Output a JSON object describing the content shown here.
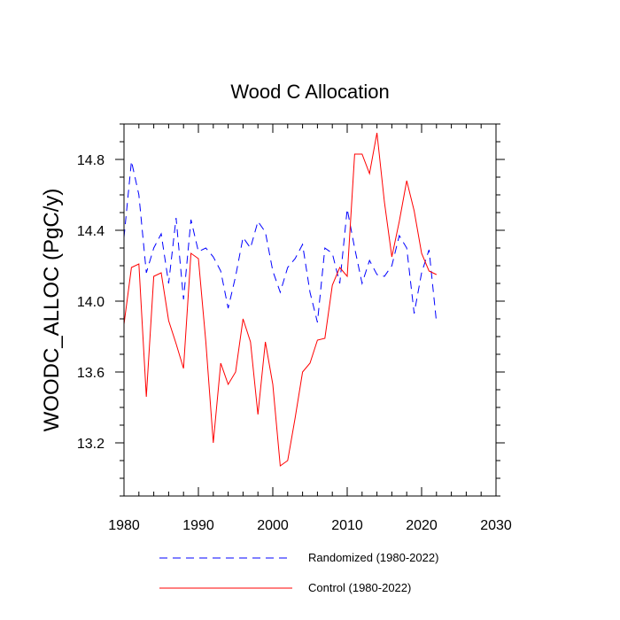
{
  "chart_data": {
    "type": "line",
    "title": "Wood C Allocation",
    "xlabel": "",
    "ylabel": "WOODC_ALLOC  (PgC/y)",
    "xlim": [
      1980,
      2030
    ],
    "ylim": [
      12.9,
      15.0
    ],
    "x_ticks": [
      1980,
      1990,
      2000,
      2010,
      2020,
      2030
    ],
    "x_tick_labels": [
      "1980",
      "1990",
      "2000",
      "2010",
      "2020",
      "2030"
    ],
    "y_ticks": [
      13.2,
      13.6,
      14.0,
      14.4,
      14.8
    ],
    "y_tick_labels": [
      "13.2",
      "13.6",
      "14.0",
      "14.4",
      "14.8"
    ],
    "grid": false,
    "legend_position": "bottom",
    "series": [
      {
        "name": "Randomized (1980-2022)",
        "color": "#0000ff",
        "style": "dashed",
        "x": [
          1980,
          1981,
          1982,
          1983,
          1984,
          1985,
          1986,
          1987,
          1988,
          1989,
          1990,
          1991,
          1992,
          1993,
          1994,
          1995,
          1996,
          1997,
          1998,
          1999,
          2000,
          2001,
          2002,
          2003,
          2004,
          2005,
          2006,
          2007,
          2008,
          2009,
          2010,
          2011,
          2012,
          2013,
          2014,
          2015,
          2016,
          2017,
          2018,
          2019,
          2020,
          2021,
          2022
        ],
        "values": [
          14.36,
          14.79,
          14.6,
          14.16,
          14.3,
          14.38,
          14.1,
          14.47,
          14.01,
          14.46,
          14.28,
          14.3,
          14.25,
          14.17,
          13.96,
          14.14,
          14.36,
          14.3,
          14.45,
          14.39,
          14.17,
          14.05,
          14.19,
          14.24,
          14.32,
          14.05,
          13.88,
          14.3,
          14.27,
          14.1,
          14.52,
          14.3,
          14.1,
          14.23,
          14.15,
          14.14,
          14.2,
          14.37,
          14.3,
          13.93,
          14.16,
          14.29,
          13.88
        ]
      },
      {
        "name": "Control (1980-2022)",
        "color": "#ff0000",
        "style": "solid",
        "x": [
          1980,
          1981,
          1982,
          1983,
          1984,
          1985,
          1986,
          1987,
          1988,
          1989,
          1990,
          1991,
          1992,
          1993,
          1994,
          1995,
          1996,
          1997,
          1998,
          1999,
          2000,
          2001,
          2002,
          2003,
          2004,
          2005,
          2006,
          2007,
          2008,
          2009,
          2010,
          2011,
          2012,
          2013,
          2014,
          2015,
          2016,
          2017,
          2018,
          2019,
          2020,
          2021,
          2022
        ],
        "values": [
          13.87,
          14.19,
          14.21,
          13.46,
          14.14,
          14.16,
          13.89,
          13.76,
          13.62,
          14.27,
          14.24,
          13.77,
          13.2,
          13.65,
          13.53,
          13.6,
          13.9,
          13.77,
          13.36,
          13.77,
          13.53,
          13.07,
          13.1,
          13.34,
          13.6,
          13.65,
          13.78,
          13.79,
          14.09,
          14.19,
          14.14,
          14.83,
          14.83,
          14.72,
          14.95,
          14.56,
          14.25,
          14.45,
          14.68,
          14.51,
          14.27,
          14.17,
          14.15
        ]
      }
    ]
  }
}
